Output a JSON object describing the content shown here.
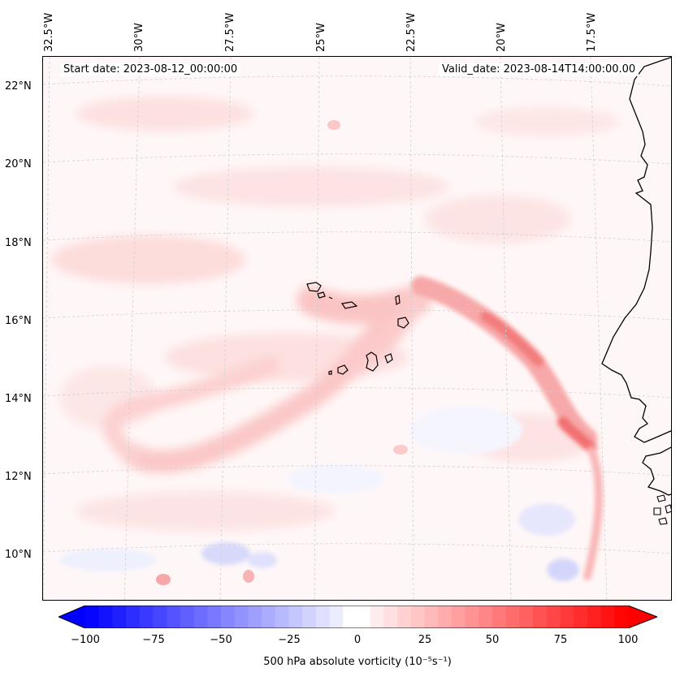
{
  "map": {
    "start_date": "Start date: 2023-08-12_00:00:00",
    "valid_date": "Valid_date: 2023-08-14T14:00:00.00",
    "lon_labels": [
      "32.5°W",
      "30°W",
      "27.5°W",
      "25°W",
      "22.5°W",
      "20°W",
      "17.5°W"
    ],
    "lat_labels": [
      "22°N",
      "20°N",
      "18°N",
      "16°N",
      "14°N",
      "12°N",
      "10°N"
    ],
    "field": "500 hPa absolute vorticity",
    "islands": "Cape Verde",
    "coastline": "West Africa (Senegal / Gambia / Guinea-Bissau)"
  },
  "colorbar": {
    "label": "500 hPa absolute vorticity (10⁻⁵s⁻¹)",
    "min": -100,
    "max": 100,
    "ticks": [
      "−100",
      "−75",
      "−50",
      "−25",
      "0",
      "25",
      "50",
      "75",
      "100"
    ],
    "colors": {
      "negative": "#0000ff",
      "zero": "#ffffff",
      "positive": "#ff0000"
    }
  }
}
